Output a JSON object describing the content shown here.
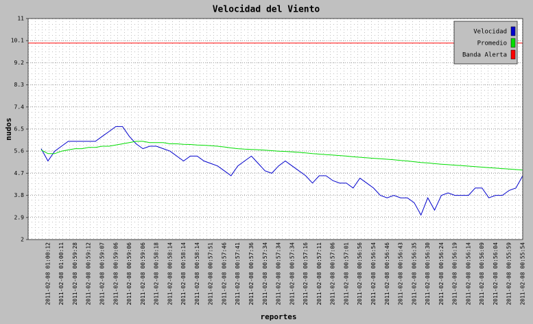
{
  "chart_data": {
    "type": "line",
    "title": "Velocidad del Viento",
    "x_label": "reportes",
    "y_label": "nudos",
    "categories": [
      null,
      "2011-02-08 01:00:12",
      null,
      "2011-02-08 01:00:11",
      null,
      "2011-02-08 00:59:28",
      null,
      "2011-02-08 00:59:12",
      null,
      "2011-02-08 00:59:07",
      null,
      "2011-02-08 00:59:06",
      null,
      "2011-02-08 00:59:06",
      null,
      "2011-02-08 00:59:06",
      null,
      "2011-02-08 00:58:18",
      null,
      "2011-02-08 00:58:14",
      null,
      "2011-02-08 00:58:14",
      null,
      "2011-02-08 00:58:14",
      null,
      "2011-02-08 00:57:51",
      null,
      "2011-02-08 00:57:46",
      null,
      "2011-02-08 00:57:41",
      null,
      "2011-02-08 00:57:36",
      null,
      "2011-02-08 00:57:34",
      null,
      "2011-02-08 00:57:34",
      null,
      "2011-02-08 00:57:34",
      null,
      "2011-02-08 00:57:16",
      null,
      "2011-02-08 00:57:11",
      null,
      "2011-02-08 00:57:06",
      null,
      "2011-02-08 00:57:01",
      null,
      "2011-02-08 00:56:56",
      null,
      "2011-02-08 00:56:54",
      null,
      "2011-02-08 00:56:46",
      null,
      "2011-02-08 00:56:43",
      null,
      "2011-02-08 00:56:35",
      null,
      "2011-02-08 00:56:30",
      null,
      "2011-02-08 00:56:24",
      null,
      "2011-02-08 00:56:19",
      null,
      "2011-02-08 00:56:14",
      null,
      "2011-02-08 00:56:09",
      null,
      "2011-02-08 00:56:04",
      null,
      "2011-02-08 00:55:59",
      null,
      "2011-02-08 00:55:54"
    ],
    "series": [
      {
        "name": "Velocidad",
        "color": "#0000cc",
        "values": [
          5.7,
          5.2,
          5.6,
          5.8,
          6.0,
          6.0,
          6.0,
          6.0,
          6.0,
          6.2,
          6.4,
          6.6,
          6.6,
          6.2,
          5.9,
          5.7,
          5.8,
          5.8,
          5.7,
          5.6,
          5.4,
          5.2,
          5.4,
          5.4,
          5.2,
          5.1,
          5.0,
          4.8,
          4.6,
          5.0,
          5.2,
          5.4,
          5.1,
          4.8,
          4.7,
          5.0,
          5.2,
          5.0,
          4.8,
          4.6,
          4.3,
          4.6,
          4.6,
          4.4,
          4.3,
          4.3,
          4.1,
          4.5,
          4.3,
          4.1,
          3.8,
          3.7,
          3.8,
          3.7,
          3.7,
          3.5,
          3.0,
          3.7,
          3.2,
          3.8,
          3.9,
          3.8,
          3.8,
          3.8,
          4.1,
          4.1,
          3.7,
          3.8,
          3.8,
          4.0,
          4.1,
          4.6
        ]
      },
      {
        "name": "Promedio",
        "color": "#00dd00",
        "values": [
          5.65,
          5.5,
          5.5,
          5.6,
          5.65,
          5.7,
          5.7,
          5.75,
          5.75,
          5.8,
          5.8,
          5.85,
          5.9,
          5.95,
          6.0,
          6.0,
          5.95,
          5.95,
          5.95,
          5.9,
          5.9,
          5.88,
          5.87,
          5.85,
          5.84,
          5.82,
          5.8,
          5.77,
          5.73,
          5.7,
          5.68,
          5.67,
          5.66,
          5.64,
          5.62,
          5.6,
          5.59,
          5.57,
          5.55,
          5.53,
          5.5,
          5.48,
          5.46,
          5.44,
          5.42,
          5.4,
          5.37,
          5.35,
          5.33,
          5.31,
          5.29,
          5.27,
          5.25,
          5.22,
          5.2,
          5.17,
          5.14,
          5.12,
          5.09,
          5.07,
          5.05,
          5.03,
          5.01,
          4.99,
          4.97,
          4.95,
          4.93,
          4.91,
          4.89,
          4.87,
          4.85,
          4.83
        ]
      },
      {
        "name": "Banda Alerta",
        "color": "#ff0000",
        "value": 10
      }
    ],
    "ylim": [
      2,
      11
    ],
    "yticks": [
      2,
      2.9,
      3.8,
      4.7,
      5.6,
      6.5,
      7.4,
      8.3,
      9.2,
      10.1,
      11
    ],
    "grid": true,
    "legend": "top-right"
  }
}
